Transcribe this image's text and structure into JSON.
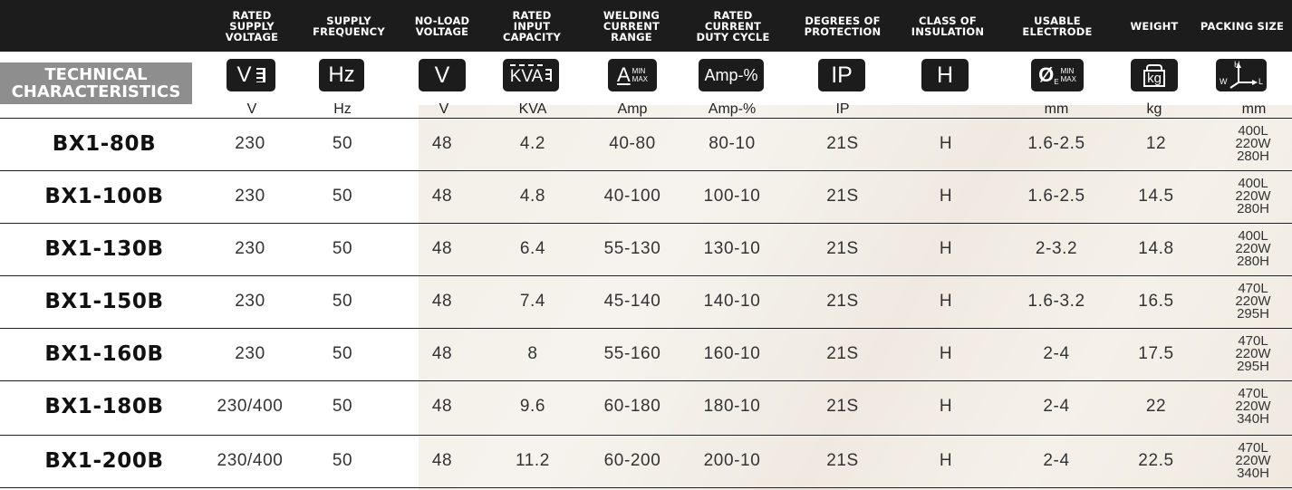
{
  "header": {
    "columns": [
      "RATED\nSUPPLY\nVOLTAGE",
      "SUPPLY\nFREQUENCY",
      "NO-LOAD\nVOLTAGE",
      "RATED\nINPUT\nCAPACITY",
      "WELDING\nCURRENT\nRANGE",
      "RATED\nCURRENT\nDUTY CYCLE",
      "DEGREES OF\nPROTECTION",
      "CLASS OF\nINSULATION",
      "USABLE\nELECTRODE",
      "WEIGHT",
      "PACKING SIZE"
    ]
  },
  "section_label": "TECHNICAL\nCHARACTERISTICS",
  "icons": {
    "voltage": "V",
    "frequency": "Hz",
    "noload": "V",
    "capacity": "KVA",
    "current_main": "A",
    "current_min": "MIN",
    "current_max": "MAX",
    "duty": "Amp-%",
    "protection": "IP",
    "insulation": "H",
    "electrode_main": "Ø",
    "electrode_sub": "E",
    "electrode_min": "MIN",
    "electrode_max": "MAX",
    "weight": "kg",
    "pack_h": "H",
    "pack_w": "W",
    "pack_l": "L"
  },
  "units": [
    "V",
    "Hz",
    "V",
    "KVA",
    "Amp",
    "Amp-%",
    "IP",
    "",
    "mm",
    "kg",
    "mm"
  ],
  "rows": [
    {
      "model": "BX1-80B",
      "supply_voltage": "230",
      "frequency": "50",
      "noload": "48",
      "capacity": "4.2",
      "current_range": "40-80",
      "duty": "80-10",
      "protection": "21S",
      "insulation": "H",
      "electrode": "1.6-2.5",
      "weight": "12",
      "pack": [
        "400L",
        "220W",
        "280H"
      ]
    },
    {
      "model": "BX1-100B",
      "supply_voltage": "230",
      "frequency": "50",
      "noload": "48",
      "capacity": "4.8",
      "current_range": "40-100",
      "duty": "100-10",
      "protection": "21S",
      "insulation": "H",
      "electrode": "1.6-2.5",
      "weight": "14.5",
      "pack": [
        "400L",
        "220W",
        "280H"
      ]
    },
    {
      "model": "BX1-130B",
      "supply_voltage": "230",
      "frequency": "50",
      "noload": "48",
      "capacity": "6.4",
      "current_range": "55-130",
      "duty": "130-10",
      "protection": "21S",
      "insulation": "H",
      "electrode": "2-3.2",
      "weight": "14.8",
      "pack": [
        "400L",
        "220W",
        "280H"
      ]
    },
    {
      "model": "BX1-150B",
      "supply_voltage": "230",
      "frequency": "50",
      "noload": "48",
      "capacity": "7.4",
      "current_range": "45-140",
      "duty": "140-10",
      "protection": "21S",
      "insulation": "H",
      "electrode": "1.6-3.2",
      "weight": "16.5",
      "pack": [
        "470L",
        "220W",
        "295H"
      ]
    },
    {
      "model": "BX1-160B",
      "supply_voltage": "230",
      "frequency": "50",
      "noload": "48",
      "capacity": "8",
      "current_range": "55-160",
      "duty": "160-10",
      "protection": "21S",
      "insulation": "H",
      "electrode": "2-4",
      "weight": "17.5",
      "pack": [
        "470L",
        "220W",
        "295H"
      ]
    },
    {
      "model": "BX1-180B",
      "supply_voltage": "230/400",
      "frequency": "50",
      "noload": "48",
      "capacity": "9.6",
      "current_range": "60-180",
      "duty": "180-10",
      "protection": "21S",
      "insulation": "H",
      "electrode": "2-4",
      "weight": "22",
      "pack": [
        "470L",
        "220W",
        "340H"
      ]
    },
    {
      "model": "BX1-200B",
      "supply_voltage": "230/400",
      "frequency": "50",
      "noload": "48",
      "capacity": "11.2",
      "current_range": "60-200",
      "duty": "200-10",
      "protection": "21S",
      "insulation": "H",
      "electrode": "2-4",
      "weight": "22.5",
      "pack": [
        "470L",
        "220W",
        "340H"
      ]
    }
  ],
  "colors": {
    "header_bg": "#1c1c1c",
    "badge_bg": "#8e8e8e",
    "paper_bg": "#f3efe8",
    "text": "#333333"
  }
}
